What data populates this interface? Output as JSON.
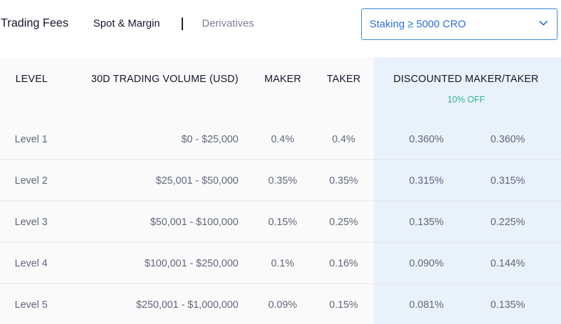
{
  "header": {
    "title": "Trading Fees",
    "tabs": [
      {
        "label": "Spot & Margin",
        "active": true
      },
      {
        "label": "Derivatives",
        "active": false
      }
    ],
    "dropdown": {
      "selected": "Staking ≥ 5000 CRO",
      "icon": "chevron-down-icon"
    }
  },
  "table": {
    "columns": {
      "level": "LEVEL",
      "volume": "30D TRADING VOLUME (USD)",
      "maker": "MAKER",
      "taker": "TAKER",
      "discounted": "DISCOUNTED MAKER/TAKER",
      "discount_note": "10% OFF"
    },
    "rows": [
      {
        "level": "Level 1",
        "volume": "$0 - $25,000",
        "maker": "0.4%",
        "taker": "0.4%",
        "disc_maker": "0.360%",
        "disc_taker": "0.360%"
      },
      {
        "level": "Level 2",
        "volume": "$25,001 - $50,000",
        "maker": "0.35%",
        "taker": "0.35%",
        "disc_maker": "0.315%",
        "disc_taker": "0.315%"
      },
      {
        "level": "Level 3",
        "volume": "$50,001 - $100,000",
        "maker": "0.15%",
        "taker": "0.25%",
        "disc_maker": "0.135%",
        "disc_taker": "0.225%"
      },
      {
        "level": "Level 4",
        "volume": "$100,001 - $250,000",
        "maker": "0.1%",
        "taker": "0.16%",
        "disc_maker": "0.090%",
        "disc_taker": "0.144%"
      },
      {
        "level": "Level 5",
        "volume": "$250,001 - $1,000,000",
        "maker": "0.09%",
        "taker": "0.15%",
        "disc_maker": "0.081%",
        "disc_taker": "0.135%"
      }
    ]
  },
  "colors": {
    "accent": "#2f6fd0",
    "discount_green": "#35b59b",
    "discount_column_bg": "#e9f1fb"
  }
}
